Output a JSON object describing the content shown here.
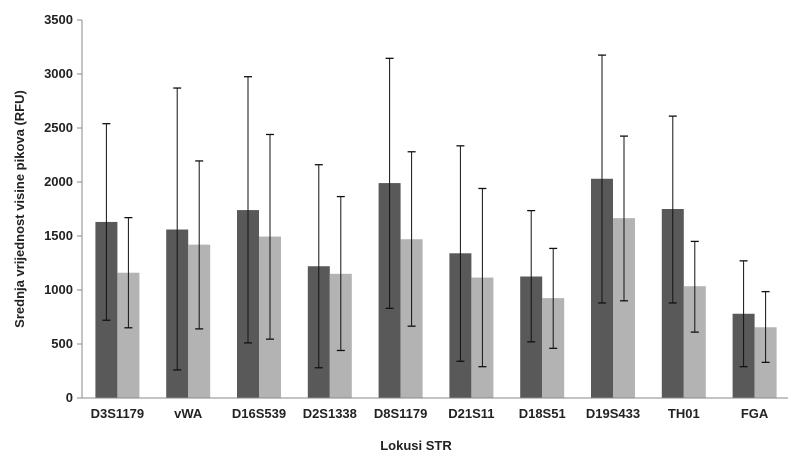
{
  "chart_data": {
    "type": "bar",
    "xlabel": "Lokusi STR",
    "ylabel": "Srednja vrijednost visine pikova (RFU)",
    "ylim": [
      0,
      3500
    ],
    "yticks": [
      0,
      500,
      1000,
      1500,
      2000,
      2500,
      3000,
      3500
    ],
    "grid": false,
    "categories": [
      "D3S1179",
      "vWA",
      "D16S539",
      "D2S1338",
      "D8S1179",
      "D21S11",
      "D18S51",
      "D19S433",
      "TH01",
      "FGA"
    ],
    "series": [
      {
        "color": "#595959",
        "values": [
          1630,
          1560,
          1740,
          1220,
          1990,
          1340,
          1125,
          2030,
          1750,
          780
        ],
        "error_low": [
          720,
          260,
          510,
          280,
          830,
          340,
          520,
          880,
          880,
          290
        ],
        "error_high": [
          2540,
          2870,
          2975,
          2160,
          3145,
          2335,
          1735,
          3175,
          2610,
          1270
        ]
      },
      {
        "color": "#b3b3b3",
        "values": [
          1160,
          1420,
          1495,
          1150,
          1470,
          1115,
          925,
          1665,
          1035,
          655
        ],
        "error_low": [
          650,
          640,
          545,
          440,
          665,
          290,
          460,
          900,
          610,
          330
        ],
        "error_high": [
          1670,
          2195,
          2440,
          1865,
          2280,
          1940,
          1385,
          2425,
          1450,
          985
        ]
      }
    ]
  }
}
